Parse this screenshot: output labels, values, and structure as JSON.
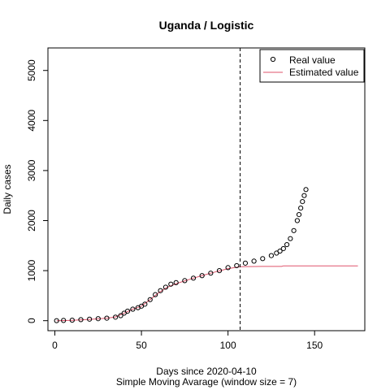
{
  "chart_data": {
    "type": "scatter",
    "title": "Uganda / Logistic",
    "xlabel": "Days since 2020-04-10",
    "sublabel": "Simple Moving Avarage (window size = 7)",
    "ylabel": "Daily cases",
    "xlim": [
      -4,
      179
    ],
    "ylim": [
      -200,
      5450
    ],
    "xticks": [
      0,
      50,
      100,
      150
    ],
    "yticks": [
      0,
      1000,
      2000,
      3000,
      4000,
      5000
    ],
    "vline_x": 107,
    "legend_position": "top-right",
    "grid": false,
    "series": [
      {
        "name": "Real value",
        "style": "points",
        "color": "#000000",
        "points": [
          [
            1,
            0
          ],
          [
            5,
            5
          ],
          [
            10,
            10
          ],
          [
            15,
            20
          ],
          [
            20,
            30
          ],
          [
            25,
            40
          ],
          [
            30,
            50
          ],
          [
            35,
            70
          ],
          [
            38,
            100
          ],
          [
            40,
            150
          ],
          [
            42,
            190
          ],
          [
            45,
            230
          ],
          [
            48,
            260
          ],
          [
            50,
            290
          ],
          [
            52,
            330
          ],
          [
            55,
            420
          ],
          [
            58,
            520
          ],
          [
            61,
            600
          ],
          [
            64,
            670
          ],
          [
            67,
            730
          ],
          [
            70,
            760
          ],
          [
            75,
            800
          ],
          [
            80,
            850
          ],
          [
            85,
            900
          ],
          [
            90,
            950
          ],
          [
            95,
            1000
          ],
          [
            100,
            1060
          ],
          [
            105,
            1100
          ],
          [
            110,
            1150
          ],
          [
            115,
            1190
          ],
          [
            120,
            1240
          ],
          [
            125,
            1300
          ],
          [
            128,
            1350
          ],
          [
            130,
            1390
          ],
          [
            132,
            1440
          ],
          [
            134,
            1520
          ],
          [
            136,
            1640
          ],
          [
            138,
            1800
          ],
          [
            140,
            2000
          ],
          [
            141,
            2120
          ],
          [
            142,
            2250
          ],
          [
            143,
            2380
          ],
          [
            144,
            2500
          ],
          [
            145,
            2620
          ]
        ]
      },
      {
        "name": "Estimated value",
        "style": "line",
        "color": "#df536b",
        "points": [
          [
            1,
            0
          ],
          [
            10,
            8
          ],
          [
            20,
            25
          ],
          [
            30,
            50
          ],
          [
            35,
            75
          ],
          [
            40,
            150
          ],
          [
            45,
            230
          ],
          [
            50,
            290
          ],
          [
            55,
            420
          ],
          [
            60,
            560
          ],
          [
            65,
            670
          ],
          [
            70,
            740
          ],
          [
            80,
            850
          ],
          [
            90,
            950
          ],
          [
            100,
            1040
          ],
          [
            107,
            1080
          ],
          [
            120,
            1085
          ],
          [
            131,
            1085
          ],
          [
            132,
            1095
          ],
          [
            150,
            1095
          ],
          [
            175,
            1095
          ]
        ]
      }
    ]
  }
}
